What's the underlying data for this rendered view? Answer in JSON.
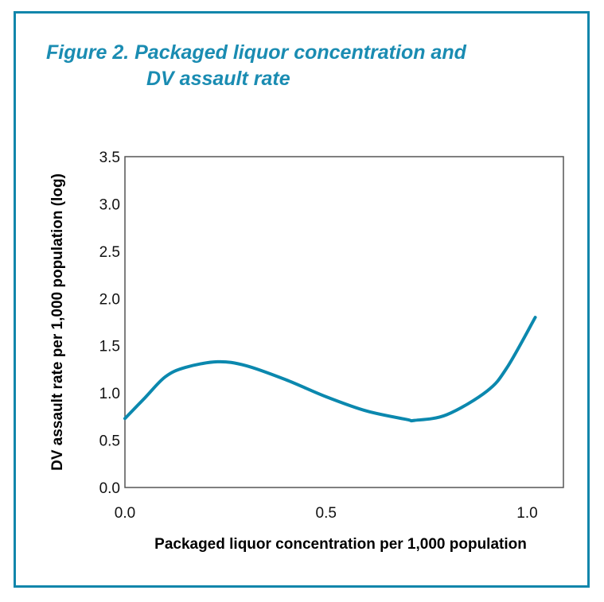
{
  "chart_data": {
    "type": "line",
    "title": "Figure 2. Packaged liquor concentration and",
    "title_line2": "DV assault rate",
    "xlabel": "Packaged liquor concentration per 1,000 population",
    "ylabel": "DV assault rate per 1,000 population (log)",
    "xlim": [
      0,
      1.09
    ],
    "ylim": [
      0,
      3.5
    ],
    "x_ticks": [
      "0.0",
      "0.5",
      "1.0"
    ],
    "x_tick_values": [
      0,
      0.5,
      1.0
    ],
    "y_ticks": [
      "0.0",
      "0.5",
      "1.0",
      "1.5",
      "2.0",
      "2.5",
      "3.0",
      "3.5"
    ],
    "y_tick_values": [
      0,
      0.5,
      1.0,
      1.5,
      2.0,
      2.5,
      3.0,
      3.5
    ],
    "grid": false,
    "series": [
      {
        "x": [
          0,
          0.05,
          0.1,
          0.15,
          0.23,
          0.3,
          0.4,
          0.5,
          0.6,
          0.7,
          0.72,
          0.8,
          0.9,
          0.95,
          1.02
        ],
        "y": [
          0.73,
          0.95,
          1.17,
          1.27,
          1.33,
          1.29,
          1.14,
          0.96,
          0.81,
          0.72,
          0.71,
          0.77,
          1.02,
          1.27,
          1.8
        ],
        "color": "#0b88ae"
      }
    ]
  },
  "colors": {
    "frame": "#1186ab",
    "title": "#1a8cb2",
    "line": "#0b88ae"
  }
}
